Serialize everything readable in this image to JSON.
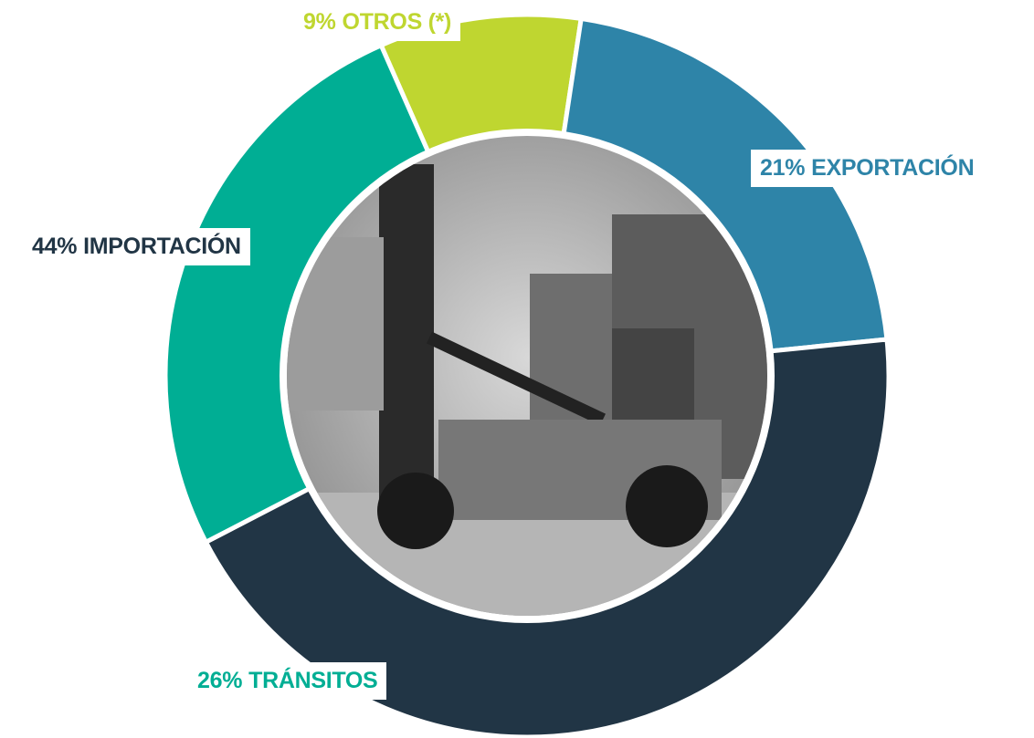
{
  "chart_data": {
    "type": "donut",
    "categories": [
      "OTROS (*)",
      "EXPORTACIÓN",
      "IMPORTACIÓN",
      "TRÁNSITOS"
    ],
    "values": [
      9,
      21,
      44,
      26
    ],
    "value_labels": [
      "9%",
      "21%",
      "44%",
      "26%"
    ],
    "colors": [
      "#bfd630",
      "#2e84a8",
      "#213545",
      "#00ae94"
    ]
  }
}
